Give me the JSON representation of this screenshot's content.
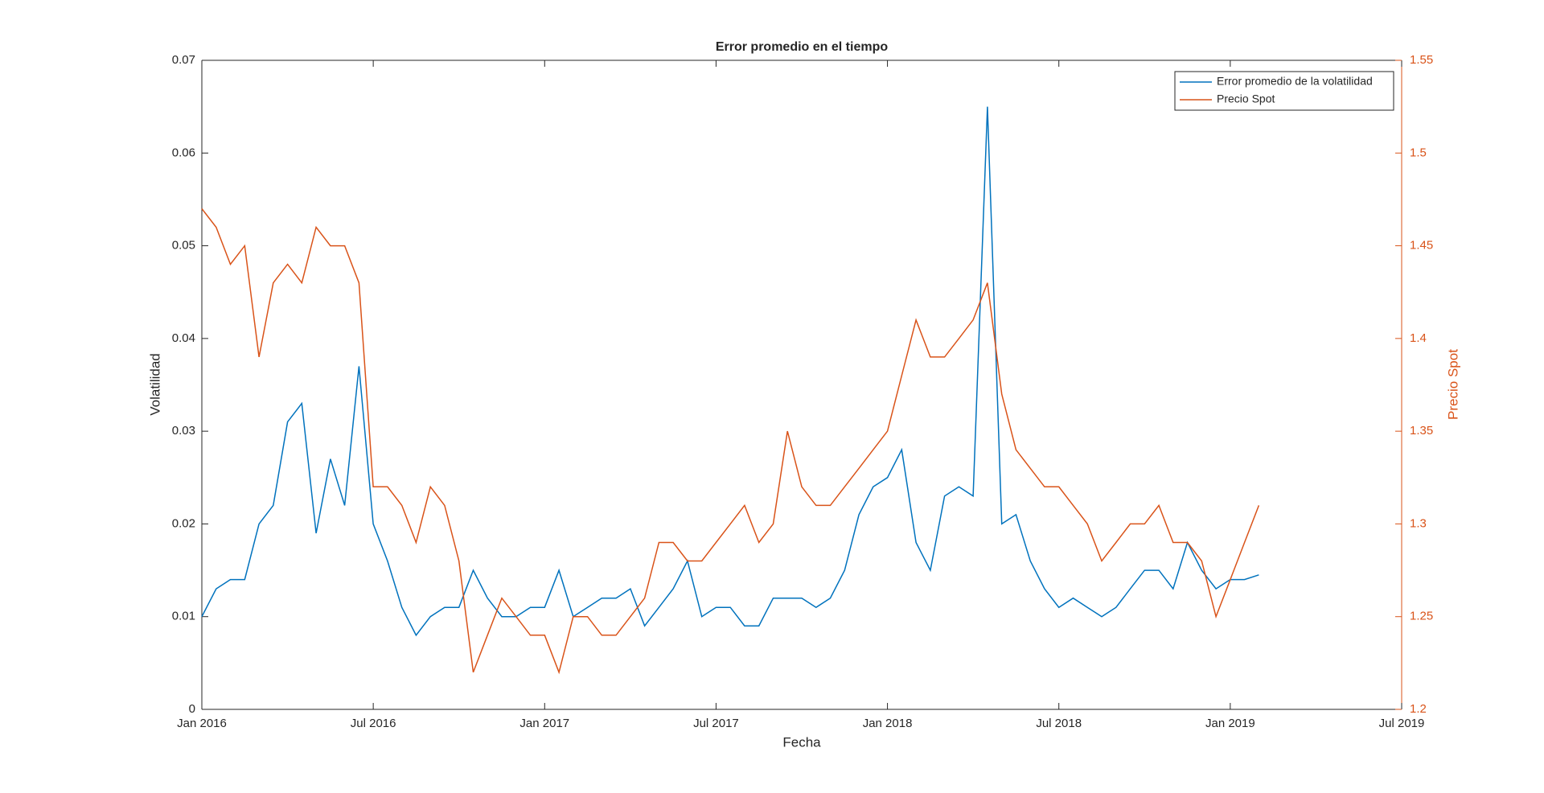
{
  "chart_data": {
    "type": "line",
    "title": "Error promedio en el tiempo",
    "xlabel": "Fecha",
    "ylabel": "Volatilidad",
    "y2label": "Precio Spot",
    "x": [
      2016,
      2016.0417,
      2016.0833,
      2016.125,
      2016.1667,
      2016.2083,
      2016.25,
      2016.2917,
      2016.3333,
      2016.375,
      2016.4167,
      2016.4583,
      2016.5,
      2016.5417,
      2016.5833,
      2016.625,
      2016.6667,
      2016.7083,
      2016.75,
      2016.7917,
      2016.8333,
      2016.875,
      2016.9167,
      2016.9583,
      2017,
      2017.0417,
      2017.0833,
      2017.125,
      2017.1667,
      2017.2083,
      2017.25,
      2017.2917,
      2017.3333,
      2017.375,
      2017.4167,
      2017.4583,
      2017.5,
      2017.5417,
      2017.5833,
      2017.625,
      2017.6667,
      2017.7083,
      2017.75,
      2017.7917,
      2017.8333,
      2017.875,
      2017.9167,
      2017.9583,
      2018,
      2018.0417,
      2018.0833,
      2018.125,
      2018.1667,
      2018.2083,
      2018.25,
      2018.2917,
      2018.3333,
      2018.375,
      2018.4167,
      2018.4583,
      2018.5,
      2018.5417,
      2018.5833,
      2018.625,
      2018.6667,
      2018.7083,
      2018.75,
      2018.7917,
      2018.8333,
      2018.875,
      2018.9167,
      2018.9583,
      2019,
      2019.0417,
      2019.0833
    ],
    "series": [
      {
        "name": "Error promedio de la volatilidad",
        "color": "#0072BD",
        "axis": "y",
        "values": [
          0.01,
          0.013,
          0.014,
          0.014,
          0.02,
          0.022,
          0.031,
          0.033,
          0.019,
          0.027,
          0.022,
          0.037,
          0.02,
          0.016,
          0.011,
          0.008,
          0.01,
          0.011,
          0.011,
          0.015,
          0.012,
          0.01,
          0.01,
          0.011,
          0.011,
          0.015,
          0.01,
          0.011,
          0.012,
          0.012,
          0.013,
          0.009,
          0.011,
          0.013,
          0.016,
          0.01,
          0.011,
          0.011,
          0.009,
          0.009,
          0.012,
          0.012,
          0.012,
          0.011,
          0.012,
          0.015,
          0.021,
          0.024,
          0.025,
          0.028,
          0.018,
          0.015,
          0.023,
          0.024,
          0.023,
          0.065,
          0.02,
          0.021,
          0.016,
          0.013,
          0.011,
          0.012,
          0.011,
          0.01,
          0.011,
          0.013,
          0.015,
          0.015,
          0.013,
          0.018,
          0.015,
          0.013,
          0.014,
          0.014,
          0.0145
        ]
      },
      {
        "name": "Precio Spot",
        "color": "#D95319",
        "axis": "y2",
        "values": [
          1.47,
          1.46,
          1.44,
          1.45,
          1.39,
          1.43,
          1.44,
          1.43,
          1.46,
          1.45,
          1.45,
          1.43,
          1.32,
          1.32,
          1.31,
          1.29,
          1.32,
          1.31,
          1.28,
          1.22,
          1.24,
          1.26,
          1.25,
          1.24,
          1.24,
          1.22,
          1.25,
          1.25,
          1.24,
          1.24,
          1.25,
          1.26,
          1.29,
          1.29,
          1.28,
          1.28,
          1.29,
          1.3,
          1.31,
          1.29,
          1.3,
          1.35,
          1.32,
          1.31,
          1.31,
          1.32,
          1.33,
          1.34,
          1.35,
          1.38,
          1.41,
          1.39,
          1.39,
          1.4,
          1.41,
          1.43,
          1.37,
          1.34,
          1.33,
          1.32,
          1.32,
          1.31,
          1.3,
          1.28,
          1.29,
          1.3,
          1.3,
          1.31,
          1.29,
          1.29,
          1.28,
          1.25,
          1.27,
          1.29,
          1.31
        ]
      }
    ],
    "xlim": [
      2016,
      2019.5
    ],
    "xticks": [
      {
        "value": 2016,
        "label": "Jan 2016"
      },
      {
        "value": 2016.5,
        "label": "Jul 2016"
      },
      {
        "value": 2017,
        "label": "Jan 2017"
      },
      {
        "value": 2017.5,
        "label": "Jul 2017"
      },
      {
        "value": 2018,
        "label": "Jan 2018"
      },
      {
        "value": 2018.5,
        "label": "Jul 2018"
      },
      {
        "value": 2019,
        "label": "Jan 2019"
      },
      {
        "value": 2019.5,
        "label": "Jul 2019"
      }
    ],
    "ylim": [
      0,
      0.07
    ],
    "yticks": [
      0,
      0.01,
      0.02,
      0.03,
      0.04,
      0.05,
      0.06,
      0.07
    ],
    "y2lim": [
      1.2,
      1.55
    ],
    "y2ticks": [
      1.2,
      1.25,
      1.3,
      1.35,
      1.4,
      1.45,
      1.5,
      1.55
    ],
    "legend": "upper right"
  }
}
